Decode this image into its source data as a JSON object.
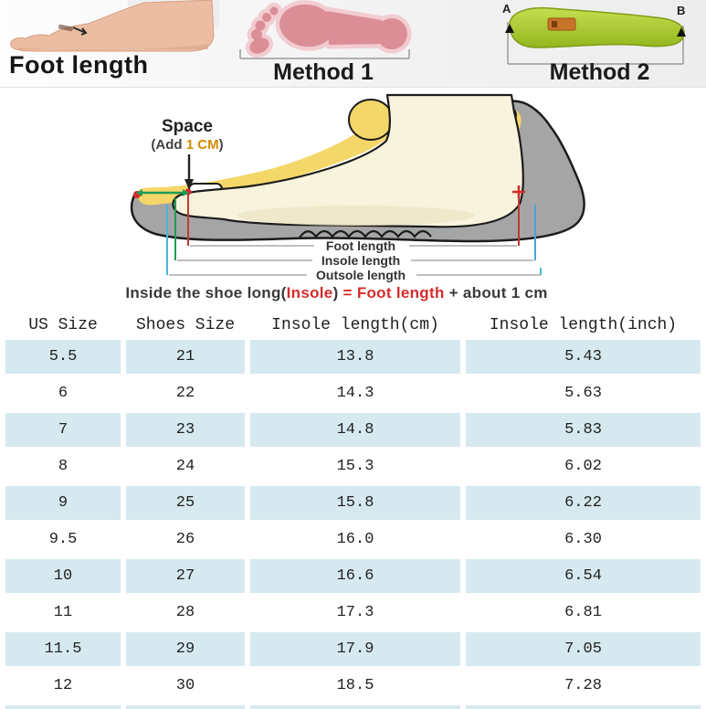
{
  "header": {
    "foot_label": "Foot length",
    "method1_label": "Method 1",
    "method2_label": "Method 2",
    "point_a": "A",
    "point_b": "B"
  },
  "diagram": {
    "space_title": "Space",
    "space_prefix": "(Add ",
    "space_value": "1 CM",
    "space_suffix": ")",
    "measure_labels": {
      "foot": "Foot length",
      "insole": "Insole length",
      "outsole": "Outsole length"
    },
    "formula": {
      "lead": "Inside the shoe long(",
      "insole": "Insole",
      "close": ") ",
      "equals": "= ",
      "foot": "Foot length",
      "tail": " + about 1 cm"
    }
  },
  "table": {
    "headers": [
      "US Size",
      "Shoes Size",
      "Insole length(cm)",
      "Insole length(inch)"
    ],
    "rows": [
      [
        "5.5",
        "21",
        "13.8",
        "5.43"
      ],
      [
        "6",
        "22",
        "14.3",
        "5.63"
      ],
      [
        "7",
        "23",
        "14.8",
        "5.83"
      ],
      [
        "8",
        "24",
        "15.3",
        "6.02"
      ],
      [
        "9",
        "25",
        "15.8",
        "6.22"
      ],
      [
        "9.5",
        "26",
        "16.0",
        "6.30"
      ],
      [
        "10",
        "27",
        "16.6",
        "6.54"
      ],
      [
        "11",
        "28",
        "17.3",
        "6.81"
      ],
      [
        "11.5",
        "29",
        "17.9",
        "7.05"
      ],
      [
        "12",
        "30",
        "18.5",
        "7.28"
      ]
    ]
  },
  "colors": {
    "row_highlight": "#d6e9f0",
    "accent_red": "#d42b2b",
    "accent_orange": "#d78b00",
    "accent_green": "#1f9d55",
    "accent_cyan": "#45b8d8",
    "accent_blue": "#4aa3d8",
    "insole_green": "#a9c435",
    "footprint_pink": "#db8e96",
    "shoe_gray": "#a5a5a5",
    "shoe_lining_yellow": "#f4d769",
    "foot_cream": "#f8f3dd"
  }
}
